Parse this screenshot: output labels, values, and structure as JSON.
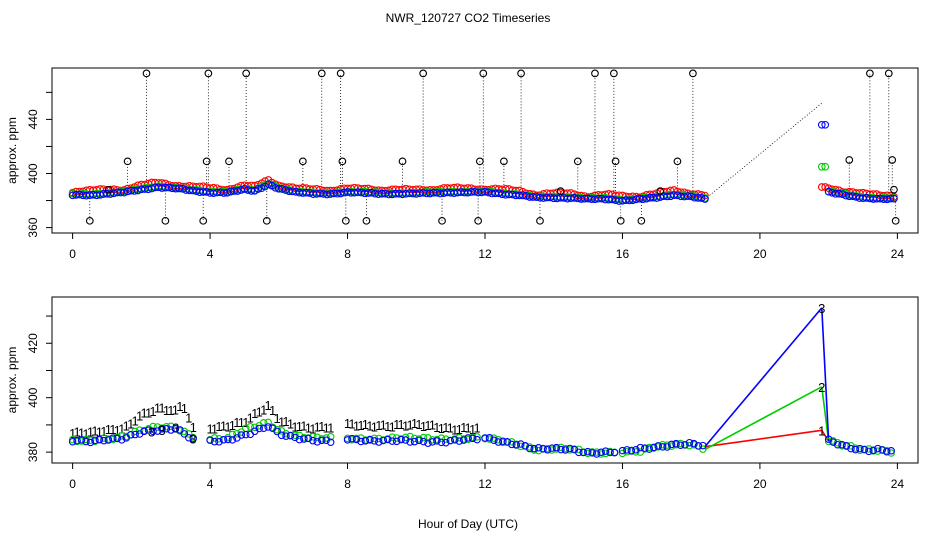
{
  "title": "NWR_120727  CO2 Timeseries",
  "xlabel": "Hour of Day (UTC)",
  "colors": {
    "series1": "#ff0000",
    "series2": "#00cc00",
    "series3": "#0000ff",
    "flagged": "#000000",
    "axis": "#000000"
  },
  "chart_data": [
    {
      "type": "scatter",
      "panel": "top",
      "title": "NWR_120727  CO2 Timeseries",
      "xlabel": "",
      "ylabel": "approx. ppm",
      "xlim": [
        -0.6,
        24.6
      ],
      "ylim": [
        356,
        478
      ],
      "xticks": [
        0,
        4,
        8,
        12,
        16,
        20,
        24
      ],
      "yticks": [
        360,
        380,
        400,
        420,
        440,
        460
      ],
      "ytick_labels": [
        "360",
        "",
        "400",
        "",
        "440",
        ""
      ],
      "grid": false,
      "gap": [
        18.4,
        21.8
      ],
      "baseline": [
        [
          0,
          384
        ],
        [
          0.5,
          384
        ],
        [
          1.0,
          385
        ],
        [
          1.5,
          386
        ],
        [
          2.0,
          388
        ],
        [
          2.5,
          390
        ],
        [
          3.0,
          389
        ],
        [
          3.5,
          387
        ],
        [
          4.0,
          386
        ],
        [
          4.5,
          386
        ],
        [
          5.0,
          388
        ],
        [
          5.3,
          387
        ],
        [
          5.7,
          392
        ],
        [
          6.0,
          389
        ],
        [
          6.5,
          386
        ],
        [
          7.0,
          385
        ],
        [
          7.5,
          385
        ],
        [
          8.0,
          386
        ],
        [
          9.0,
          385
        ],
        [
          10.0,
          385
        ],
        [
          11.0,
          386
        ],
        [
          12.0,
          386
        ],
        [
          12.5,
          385
        ],
        [
          13.0,
          384
        ],
        [
          13.5,
          382
        ],
        [
          14.0,
          382
        ],
        [
          14.5,
          382
        ],
        [
          15.0,
          381
        ],
        [
          15.5,
          381
        ],
        [
          16.0,
          380
        ],
        [
          16.5,
          381
        ],
        [
          17.0,
          382
        ],
        [
          17.5,
          384
        ],
        [
          18.0,
          383
        ],
        [
          18.4,
          381
        ],
        [
          21.8,
          436
        ],
        [
          22.0,
          386
        ],
        [
          22.5,
          384
        ],
        [
          23.0,
          382
        ],
        [
          23.5,
          381
        ],
        [
          23.9,
          381
        ]
      ],
      "flagged_points": [
        [
          0.5,
          365
        ],
        [
          1.05,
          388
        ],
        [
          1.6,
          409
        ],
        [
          2.15,
          474
        ],
        [
          2.7,
          365
        ],
        [
          3.8,
          365
        ],
        [
          3.9,
          409
        ],
        [
          3.95,
          474
        ],
        [
          4.55,
          409
        ],
        [
          5.05,
          474
        ],
        [
          5.65,
          365
        ],
        [
          6.7,
          409
        ],
        [
          7.25,
          474
        ],
        [
          7.8,
          474
        ],
        [
          7.85,
          409
        ],
        [
          7.95,
          365
        ],
        [
          8.55,
          365
        ],
        [
          9.6,
          409
        ],
        [
          10.2,
          474
        ],
        [
          10.75,
          365
        ],
        [
          11.8,
          365
        ],
        [
          11.85,
          409
        ],
        [
          11.95,
          474
        ],
        [
          12.55,
          409
        ],
        [
          13.05,
          474
        ],
        [
          13.6,
          365
        ],
        [
          14.2,
          387
        ],
        [
          14.7,
          409
        ],
        [
          15.2,
          474
        ],
        [
          15.75,
          474
        ],
        [
          15.8,
          409
        ],
        [
          15.95,
          365
        ],
        [
          16.55,
          365
        ],
        [
          17.1,
          387
        ],
        [
          17.6,
          409
        ],
        [
          18.05,
          474
        ],
        [
          22.6,
          410
        ],
        [
          23.2,
          474
        ],
        [
          23.75,
          474
        ],
        [
          23.85,
          410
        ],
        [
          23.9,
          388
        ],
        [
          23.95,
          365
        ]
      ],
      "series": [
        {
          "name": "1",
          "color": "#ff0000"
        },
        {
          "name": "2",
          "color": "#00cc00"
        },
        {
          "name": "3",
          "color": "#0000ff"
        }
      ]
    },
    {
      "type": "scatter",
      "panel": "bottom",
      "xlabel": "Hour of Day (UTC)",
      "ylabel": "approx. ppm",
      "xlim": [
        -0.6,
        24.6
      ],
      "ylim": [
        376,
        437
      ],
      "xticks": [
        0,
        4,
        8,
        12,
        16,
        20,
        24
      ],
      "yticks": [
        380,
        390,
        400,
        410,
        420,
        430
      ],
      "ytick_labels": [
        "380",
        "",
        "400",
        "",
        "420",
        ""
      ],
      "grid": false,
      "gap": [
        18.4,
        21.8
      ],
      "series": [
        {
          "name": "1",
          "color": "#ff0000",
          "label": "1",
          "points": [
            [
              0,
              384
            ],
            [
              0.5,
              384
            ],
            [
              1.0,
              385
            ],
            [
              1.5,
              386
            ],
            [
              2.0,
              391
            ],
            [
              2.5,
              393
            ],
            [
              3.0,
              392
            ],
            [
              3.2,
              395
            ],
            [
              3.5,
              386
            ],
            [
              4.0,
              386
            ],
            [
              4.5,
              387
            ],
            [
              5.0,
              388
            ],
            [
              5.7,
              394
            ],
            [
              6.0,
              389
            ],
            [
              6.5,
              387
            ],
            [
              7.0,
              386
            ],
            [
              7.5,
              386
            ],
            [
              8.0,
              387
            ],
            [
              9.0,
              387
            ],
            [
              10.0,
              387
            ],
            [
              11.0,
              386
            ],
            [
              12.0,
              386
            ],
            [
              12.5,
              385
            ],
            [
              13.0,
              383
            ],
            [
              13.5,
              381
            ],
            [
              14.0,
              381
            ],
            [
              14.5,
              381
            ],
            [
              15.0,
              380
            ],
            [
              15.5,
              380
            ],
            [
              16.0,
              380
            ],
            [
              16.5,
              380
            ],
            [
              17.0,
              382
            ],
            [
              17.5,
              383
            ],
            [
              18.0,
              383
            ],
            [
              18.4,
              382
            ],
            [
              21.8,
              388
            ],
            [
              22.0,
              384
            ],
            [
              22.5,
              382
            ],
            [
              23.0,
              381
            ],
            [
              23.5,
              381
            ],
            [
              23.9,
              380
            ]
          ]
        },
        {
          "name": "2",
          "color": "#00cc00",
          "label": "2",
          "points": [
            [
              0,
              384
            ],
            [
              0.5,
              384
            ],
            [
              1.0,
              385
            ],
            [
              1.5,
              386
            ],
            [
              2.0,
              388
            ],
            [
              2.5,
              389
            ],
            [
              3.0,
              389
            ],
            [
              3.5,
              386
            ],
            [
              4.0,
              385
            ],
            [
              4.5,
              385
            ],
            [
              5.0,
              388
            ],
            [
              5.7,
              391
            ],
            [
              6.0,
              388
            ],
            [
              6.5,
              386
            ],
            [
              7.0,
              385
            ],
            [
              7.5,
              385
            ],
            [
              8.0,
              385
            ],
            [
              9.0,
              385
            ],
            [
              10.0,
              385
            ],
            [
              11.0,
              385
            ],
            [
              12.0,
              385
            ],
            [
              12.5,
              384
            ],
            [
              13.0,
              383
            ],
            [
              13.5,
              381
            ],
            [
              14.0,
              381
            ],
            [
              14.5,
              381
            ],
            [
              15.0,
              380
            ],
            [
              15.5,
              380
            ],
            [
              16.0,
              380
            ],
            [
              16.5,
              380
            ],
            [
              17.0,
              382
            ],
            [
              17.5,
              383
            ],
            [
              18.0,
              383
            ],
            [
              18.4,
              381
            ],
            [
              21.8,
              404
            ],
            [
              22.0,
              384
            ],
            [
              22.5,
              382
            ],
            [
              23.0,
              381
            ],
            [
              23.5,
              381
            ],
            [
              23.9,
              380
            ]
          ]
        },
        {
          "name": "3",
          "color": "#0000ff",
          "label": "3",
          "points": [
            [
              0,
              384
            ],
            [
              0.5,
              384
            ],
            [
              1.0,
              385
            ],
            [
              1.5,
              385
            ],
            [
              2.0,
              387
            ],
            [
              2.5,
              388
            ],
            [
              3.0,
              389
            ],
            [
              3.5,
              385
            ],
            [
              4.0,
              384
            ],
            [
              4.5,
              384
            ],
            [
              5.0,
              386
            ],
            [
              5.7,
              390
            ],
            [
              6.0,
              387
            ],
            [
              6.5,
              385
            ],
            [
              7.0,
              384
            ],
            [
              7.5,
              384
            ],
            [
              8.0,
              385
            ],
            [
              9.0,
              384
            ],
            [
              10.0,
              384
            ],
            [
              11.0,
              384
            ],
            [
              12.0,
              385
            ],
            [
              12.5,
              384
            ],
            [
              13.0,
              383
            ],
            [
              13.5,
              381
            ],
            [
              14.0,
              381
            ],
            [
              14.5,
              381
            ],
            [
              15.0,
              380
            ],
            [
              15.5,
              380
            ],
            [
              16.0,
              380
            ],
            [
              16.5,
              381
            ],
            [
              17.0,
              382
            ],
            [
              17.5,
              383
            ],
            [
              18.0,
              383
            ],
            [
              18.4,
              382
            ],
            [
              21.8,
              433
            ],
            [
              22.0,
              384
            ],
            [
              22.5,
              382
            ],
            [
              23.0,
              381
            ],
            [
              23.5,
              381
            ],
            [
              23.9,
              380
            ]
          ]
        }
      ]
    }
  ]
}
